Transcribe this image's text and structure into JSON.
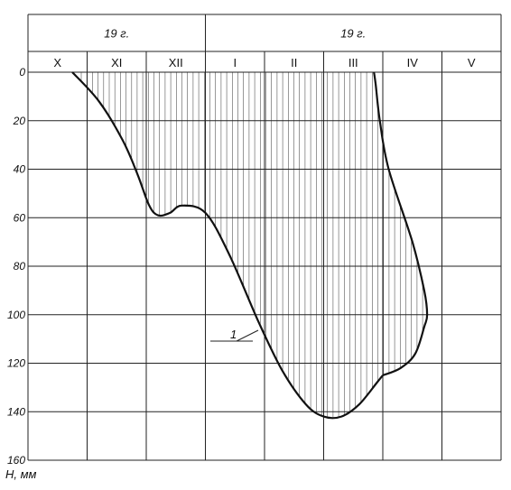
{
  "chart_data": {
    "type": "area",
    "header": {
      "years": [
        {
          "label": "19    г.",
          "months": 3
        },
        {
          "label": "19    г.",
          "months": 5
        }
      ]
    },
    "months": [
      "X",
      "XI",
      "XII",
      "I",
      "II",
      "III",
      "IV",
      "V"
    ],
    "ylabel": "H, мм",
    "ylim": [
      0,
      160
    ],
    "yticks": [
      "0",
      "20",
      "40",
      "60",
      "80",
      "100",
      "120",
      "140",
      "160"
    ],
    "grid": true,
    "annotation": "1",
    "upper_curve": {
      "x": [
        0.75,
        1.2,
        1.6,
        1.85,
        2.05,
        2.2,
        2.4,
        2.6,
        3.0,
        3.4,
        3.9,
        4.3,
        4.7,
        5.0,
        5.3,
        5.6,
        5.9,
        6.0
      ],
      "y": [
        0,
        12,
        28,
        42,
        55,
        59,
        58,
        55,
        58,
        75,
        103,
        123,
        137,
        142,
        142,
        137,
        128,
        125
      ]
    },
    "lower_curve": {
      "x": [
        6.0,
        6.3,
        6.55,
        6.7,
        6.75,
        6.7,
        6.5,
        6.1,
        5.95,
        5.88,
        5.85
      ],
      "y": [
        125,
        122,
        116,
        105,
        100,
        90,
        70,
        40,
        20,
        5,
        0
      ]
    }
  }
}
